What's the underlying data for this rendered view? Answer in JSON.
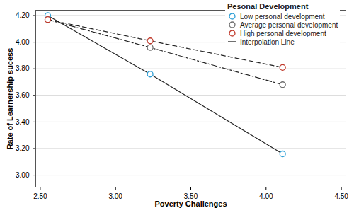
{
  "chart_data": {
    "type": "line",
    "x_label": "Poverty Challenges",
    "y_label": "Rate of Learnership sucess",
    "legend_title": "Pesonal Development",
    "legend_line_label": "Interpolation Line",
    "x": [
      2.55,
      3.23,
      4.11
    ],
    "series": [
      {
        "name": "Low personal development",
        "color": "#2e9fd6",
        "line_style": "solid",
        "values": [
          4.2,
          3.76,
          3.16
        ]
      },
      {
        "name": "Average personal development",
        "color": "#6e6e6e",
        "line_style": "dashdot",
        "values": [
          4.17,
          3.96,
          3.68
        ]
      },
      {
        "name": "High personal development",
        "color": "#c0392b",
        "line_style": "dashed",
        "values": [
          4.17,
          4.01,
          3.81
        ]
      }
    ],
    "xlim": [
      2.47,
      4.53
    ],
    "xticks": [
      {
        "value": 2.5,
        "label": "2.50"
      },
      {
        "value": 3,
        "label": "3.00"
      },
      {
        "value": 3.5,
        "label": "3.50"
      },
      {
        "value": 4,
        "label": "4.00"
      },
      {
        "value": 4.5,
        "label": "4.50"
      }
    ],
    "ylim": [
      2.91,
      4.24
    ],
    "yticks": [
      {
        "value": 3,
        "label": "3.00"
      },
      {
        "value": 3.2,
        "label": "3.20"
      },
      {
        "value": 3.4,
        "label": "3.40"
      },
      {
        "value": 3.6,
        "label": "3.60"
      },
      {
        "value": 3.8,
        "label": "3.80"
      },
      {
        "value": 4,
        "label": "4.00"
      },
      {
        "value": 4.2,
        "label": "4.20"
      }
    ],
    "grid": true,
    "legend": "top-right",
    "marker": "circle"
  }
}
